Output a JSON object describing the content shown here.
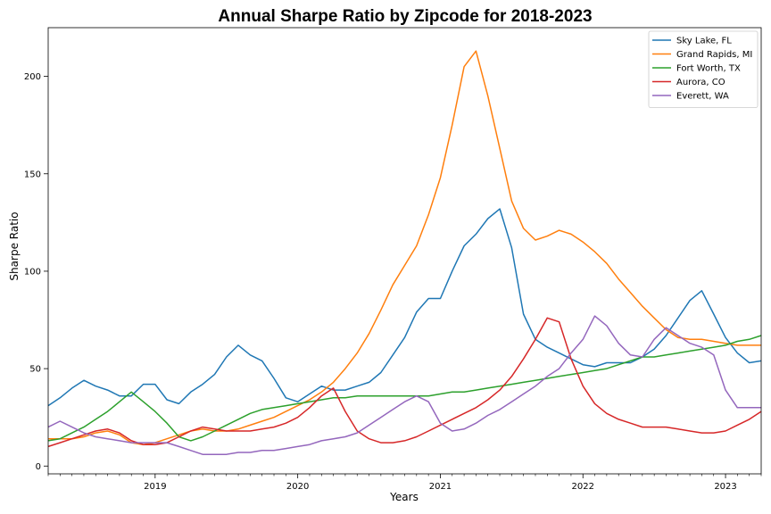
{
  "chart_data": {
    "type": "line",
    "title": "Annual Sharpe Ratio by Zipcode for 2018-2023",
    "xlabel": "Years",
    "ylabel": "Sharpe Ratio",
    "xlim": [
      2018.25,
      2023.25
    ],
    "ylim": [
      -4,
      225
    ],
    "x_ticks": [
      2019,
      2020,
      2021,
      2022,
      2023
    ],
    "y_ticks": [
      0,
      50,
      100,
      150,
      200
    ],
    "grid": false,
    "legend_position": "top-right",
    "x": [
      2018.25,
      2018.333,
      2018.417,
      2018.5,
      2018.583,
      2018.667,
      2018.75,
      2018.833,
      2018.917,
      2019.0,
      2019.083,
      2019.167,
      2019.25,
      2019.333,
      2019.417,
      2019.5,
      2019.583,
      2019.667,
      2019.75,
      2019.833,
      2019.917,
      2020.0,
      2020.083,
      2020.167,
      2020.25,
      2020.333,
      2020.417,
      2020.5,
      2020.583,
      2020.667,
      2020.75,
      2020.833,
      2020.917,
      2021.0,
      2021.083,
      2021.167,
      2021.25,
      2021.333,
      2021.417,
      2021.5,
      2021.583,
      2021.667,
      2021.75,
      2021.833,
      2021.917,
      2022.0,
      2022.083,
      2022.167,
      2022.25,
      2022.333,
      2022.417,
      2022.5,
      2022.583,
      2022.667,
      2022.75,
      2022.833,
      2022.917,
      2023.0,
      2023.083,
      2023.167,
      2023.25
    ],
    "series": [
      {
        "name": "Sky Lake, FL",
        "color": "#1f77b4",
        "values": [
          31,
          35,
          40,
          44,
          41,
          39,
          36,
          36,
          42,
          42,
          34,
          32,
          38,
          42,
          47,
          56,
          62,
          57,
          54,
          45,
          35,
          33,
          37,
          41,
          39,
          39,
          41,
          43,
          48,
          57,
          66,
          79,
          86,
          86,
          100,
          113,
          119,
          127,
          132,
          112,
          78,
          65,
          61,
          58,
          55,
          52,
          51,
          53,
          53,
          53,
          56,
          60,
          67,
          76,
          85,
          90,
          78,
          66,
          58,
          53,
          54
        ]
      },
      {
        "name": "Grand Rapids, MI",
        "color": "#ff7f0e",
        "values": [
          14,
          14,
          14,
          15,
          17,
          18,
          16,
          12,
          11,
          12,
          14,
          16,
          18,
          19,
          18,
          18,
          19,
          21,
          23,
          25,
          28,
          31,
          34,
          38,
          43,
          50,
          58,
          68,
          80,
          93,
          103,
          113,
          129,
          148,
          175,
          205,
          213,
          190,
          163,
          136,
          122,
          116,
          118,
          121,
          119,
          115,
          110,
          104,
          96,
          89,
          82,
          76,
          70,
          66,
          65,
          65,
          64,
          63,
          62,
          62,
          62
        ]
      },
      {
        "name": "Fort Worth, TX",
        "color": "#2ca02c",
        "values": [
          13,
          14,
          17,
          20,
          24,
          28,
          33,
          38,
          33,
          28,
          22,
          15,
          13,
          15,
          18,
          21,
          24,
          27,
          29,
          30,
          31,
          32,
          33,
          34,
          35,
          35,
          36,
          36,
          36,
          36,
          36,
          36,
          36,
          37,
          38,
          38,
          39,
          40,
          41,
          42,
          43,
          44,
          45,
          46,
          47,
          48,
          49,
          50,
          52,
          54,
          56,
          56,
          57,
          58,
          59,
          60,
          61,
          62,
          64,
          65,
          67
        ]
      },
      {
        "name": "Aurora, CO",
        "color": "#d62728",
        "values": [
          10,
          12,
          14,
          16,
          18,
          19,
          17,
          13,
          11,
          11,
          12,
          15,
          18,
          20,
          19,
          18,
          18,
          18,
          19,
          20,
          22,
          25,
          30,
          36,
          40,
          28,
          18,
          14,
          12,
          12,
          13,
          15,
          18,
          21,
          24,
          27,
          30,
          34,
          39,
          46,
          55,
          65,
          76,
          74,
          55,
          41,
          32,
          27,
          24,
          22,
          20,
          20,
          20,
          19,
          18,
          17,
          17,
          18,
          21,
          24,
          28
        ]
      },
      {
        "name": "Everett, WA",
        "color": "#9467bd",
        "values": [
          20,
          23,
          20,
          17,
          15,
          14,
          13,
          12,
          12,
          12,
          12,
          10,
          8,
          6,
          6,
          6,
          7,
          7,
          8,
          8,
          9,
          10,
          11,
          13,
          14,
          15,
          17,
          21,
          25,
          29,
          33,
          36,
          33,
          22,
          18,
          19,
          22,
          26,
          29,
          33,
          37,
          41,
          46,
          50,
          58,
          65,
          77,
          72,
          63,
          57,
          56,
          65,
          71,
          67,
          63,
          61,
          57,
          39,
          30,
          30,
          30
        ]
      }
    ]
  }
}
